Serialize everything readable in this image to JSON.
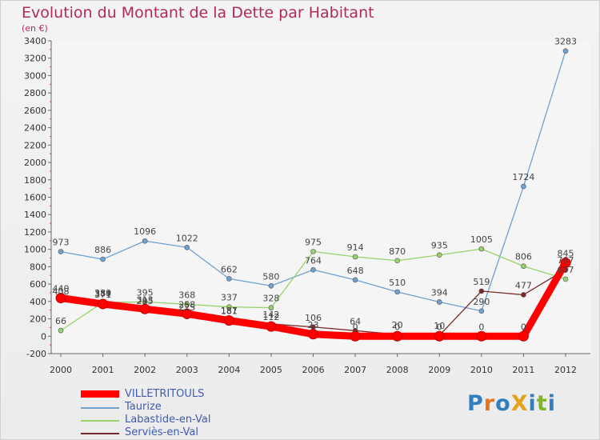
{
  "title": "Evolution du Montant de la Dette par Habitant",
  "unit": "(en €)",
  "logo": "ProXiti",
  "chart_data": {
    "type": "line",
    "title": "Evolution du Montant de la Dette par Habitant",
    "ylabel": "(en €)",
    "xlabel": "",
    "x": [
      "2000",
      "2001",
      "2002",
      "2003",
      "2004",
      "2005",
      "2006",
      "2007",
      "2008",
      "2009",
      "2010",
      "2011",
      "2012"
    ],
    "ylim": [
      -200,
      3400
    ],
    "yticks": [
      -200,
      0,
      200,
      400,
      600,
      800,
      1000,
      1200,
      1400,
      1600,
      1800,
      2000,
      2200,
      2400,
      2600,
      2800,
      3000,
      3200,
      3400
    ],
    "grid": false,
    "legend": "bottom-left",
    "series": [
      {
        "name": "VILLETRITOULS",
        "color": "#ff0000",
        "values": [
          440,
          371,
          313,
          258,
          181,
          112,
          23,
          0,
          0,
          0,
          0,
          0,
          845
        ]
      },
      {
        "name": "Taurize",
        "color": "#6fa1d1",
        "values": [
          973,
          886,
          1096,
          1022,
          662,
          580,
          764,
          648,
          510,
          394,
          290,
          1724,
          3283
        ]
      },
      {
        "name": "Labastide-en-Val",
        "color": "#97d36b",
        "values": [
          66,
          389,
          395,
          368,
          337,
          328,
          975,
          914,
          870,
          935,
          1005,
          806,
          657
        ]
      },
      {
        "name": "Serviès-en-Val",
        "color": "#7a2a2a",
        "values": [
          408,
          384,
          295,
          225,
          187,
          142,
          106,
          64,
          20,
          10,
          519,
          477,
          767
        ]
      }
    ]
  }
}
